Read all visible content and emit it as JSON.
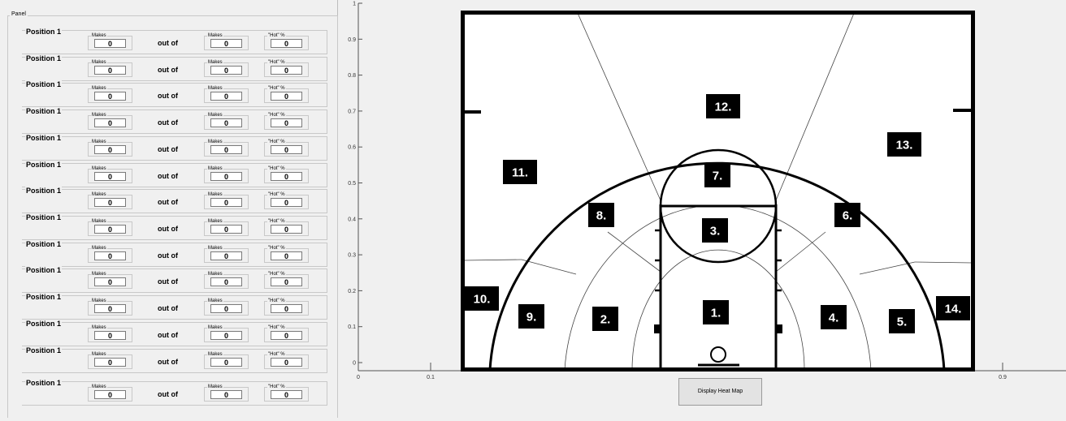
{
  "panel": {
    "title": "Panel",
    "rows": [
      {
        "position_label": "Position 1",
        "makes_label": "Makes",
        "makes_value": "0",
        "out_of_label": "out of",
        "attempts_label": "Makes",
        "attempts_value": "0",
        "hot_label": "\"Hot\" %",
        "hot_value": "0"
      },
      {
        "position_label": "Position 1",
        "makes_label": "Makes",
        "makes_value": "0",
        "out_of_label": "out of",
        "attempts_label": "Makes",
        "attempts_value": "0",
        "hot_label": "\"Hot\" %",
        "hot_value": "0"
      },
      {
        "position_label": "Position 1",
        "makes_label": "Makes",
        "makes_value": "0",
        "out_of_label": "out of",
        "attempts_label": "Makes",
        "attempts_value": "0",
        "hot_label": "\"Hot\" %",
        "hot_value": "0"
      },
      {
        "position_label": "Position 1",
        "makes_label": "Makes",
        "makes_value": "0",
        "out_of_label": "out of",
        "attempts_label": "Makes",
        "attempts_value": "0",
        "hot_label": "\"Hot\" %",
        "hot_value": "0"
      },
      {
        "position_label": "Position 1",
        "makes_label": "Makes",
        "makes_value": "0",
        "out_of_label": "out of",
        "attempts_label": "Makes",
        "attempts_value": "0",
        "hot_label": "\"Hot\" %",
        "hot_value": "0"
      },
      {
        "position_label": "Position 1",
        "makes_label": "Makes",
        "makes_value": "0",
        "out_of_label": "out of",
        "attempts_label": "Makes",
        "attempts_value": "0",
        "hot_label": "\"Hot\" %",
        "hot_value": "0"
      },
      {
        "position_label": "Position 1",
        "makes_label": "Makes",
        "makes_value": "0",
        "out_of_label": "out of",
        "attempts_label": "Makes",
        "attempts_value": "0",
        "hot_label": "\"Hot\" %",
        "hot_value": "0"
      },
      {
        "position_label": "Position 1",
        "makes_label": "Makes",
        "makes_value": "0",
        "out_of_label": "out of",
        "attempts_label": "Makes",
        "attempts_value": "0",
        "hot_label": "\"Hot\" %",
        "hot_value": "0"
      },
      {
        "position_label": "Position 1",
        "makes_label": "Makes",
        "makes_value": "0",
        "out_of_label": "out of",
        "attempts_label": "Makes",
        "attempts_value": "0",
        "hot_label": "\"Hot\" %",
        "hot_value": "0"
      },
      {
        "position_label": "Position 1",
        "makes_label": "Makes",
        "makes_value": "0",
        "out_of_label": "out of",
        "attempts_label": "Makes",
        "attempts_value": "0",
        "hot_label": "\"Hot\" %",
        "hot_value": "0"
      },
      {
        "position_label": "Position 1",
        "makes_label": "Makes",
        "makes_value": "0",
        "out_of_label": "out of",
        "attempts_label": "Makes",
        "attempts_value": "0",
        "hot_label": "\"Hot\" %",
        "hot_value": "0"
      },
      {
        "position_label": "Position 1",
        "makes_label": "Makes",
        "makes_value": "0",
        "out_of_label": "out of",
        "attempts_label": "Makes",
        "attempts_value": "0",
        "hot_label": "\"Hot\" %",
        "hot_value": "0"
      },
      {
        "position_label": "Position 1",
        "makes_label": "Makes",
        "makes_value": "0",
        "out_of_label": "out of",
        "attempts_label": "Makes",
        "attempts_value": "0",
        "hot_label": "\"Hot\" %",
        "hot_value": "0"
      },
      {
        "position_label": "Position 1",
        "makes_label": "Makes",
        "makes_value": "0",
        "out_of_label": "out of",
        "attempts_label": "Makes",
        "attempts_value": "0",
        "hot_label": "\"Hot\" %",
        "hot_value": "0"
      }
    ]
  },
  "axes": {
    "y_ticks": [
      "0",
      "0.1",
      "0.2",
      "0.3",
      "0.4",
      "0.5",
      "0.6",
      "0.7",
      "0.8",
      "0.9",
      "1"
    ],
    "x_ticks": [
      "0",
      "0.1",
      "0.9"
    ]
  },
  "court": {
    "zones": [
      "1.",
      "2.",
      "3.",
      "4.",
      "5.",
      "6.",
      "7.",
      "8.",
      "9.",
      "10.",
      "11.",
      "12.",
      "13.",
      "14."
    ]
  },
  "button": {
    "label": "Display Heat Map"
  }
}
